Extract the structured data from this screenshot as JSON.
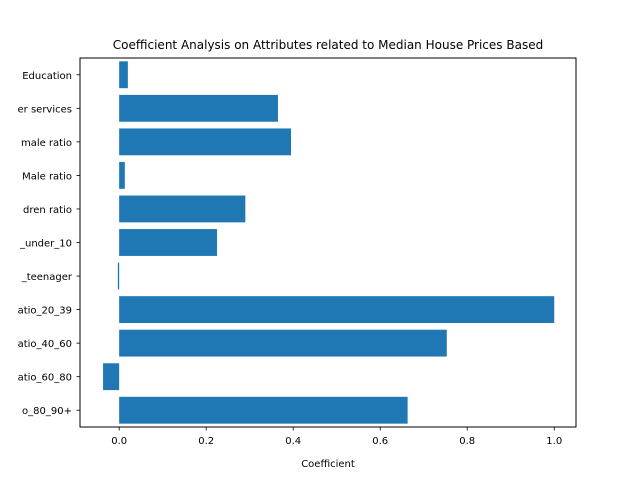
{
  "chart_data": {
    "type": "bar",
    "orientation": "horizontal",
    "title": "Coefficient Analysis on Attributes related to Median House Prices Based",
    "xlabel": "Coefficient",
    "ylabel": "",
    "xlim": [
      -0.09,
      1.05
    ],
    "xticks": [
      0.0,
      0.2,
      0.4,
      0.6,
      0.8,
      1.0
    ],
    "xtick_labels": [
      "0.0",
      "0.2",
      "0.4",
      "0.6",
      "0.8",
      "1.0"
    ],
    "categories": [
      "Education",
      "er services",
      "male ratio",
      "Male ratio",
      "dren ratio",
      "_under_10",
      "_teenager",
      "atio_20_39",
      "atio_40_60",
      "atio_60_80",
      "o_80_90+"
    ],
    "values": [
      0.02,
      0.365,
      0.395,
      0.013,
      0.29,
      0.225,
      -0.003,
      1.0,
      0.753,
      -0.037,
      0.663
    ],
    "bar_color": "#1f77b4",
    "grid": false,
    "legend": "none"
  }
}
